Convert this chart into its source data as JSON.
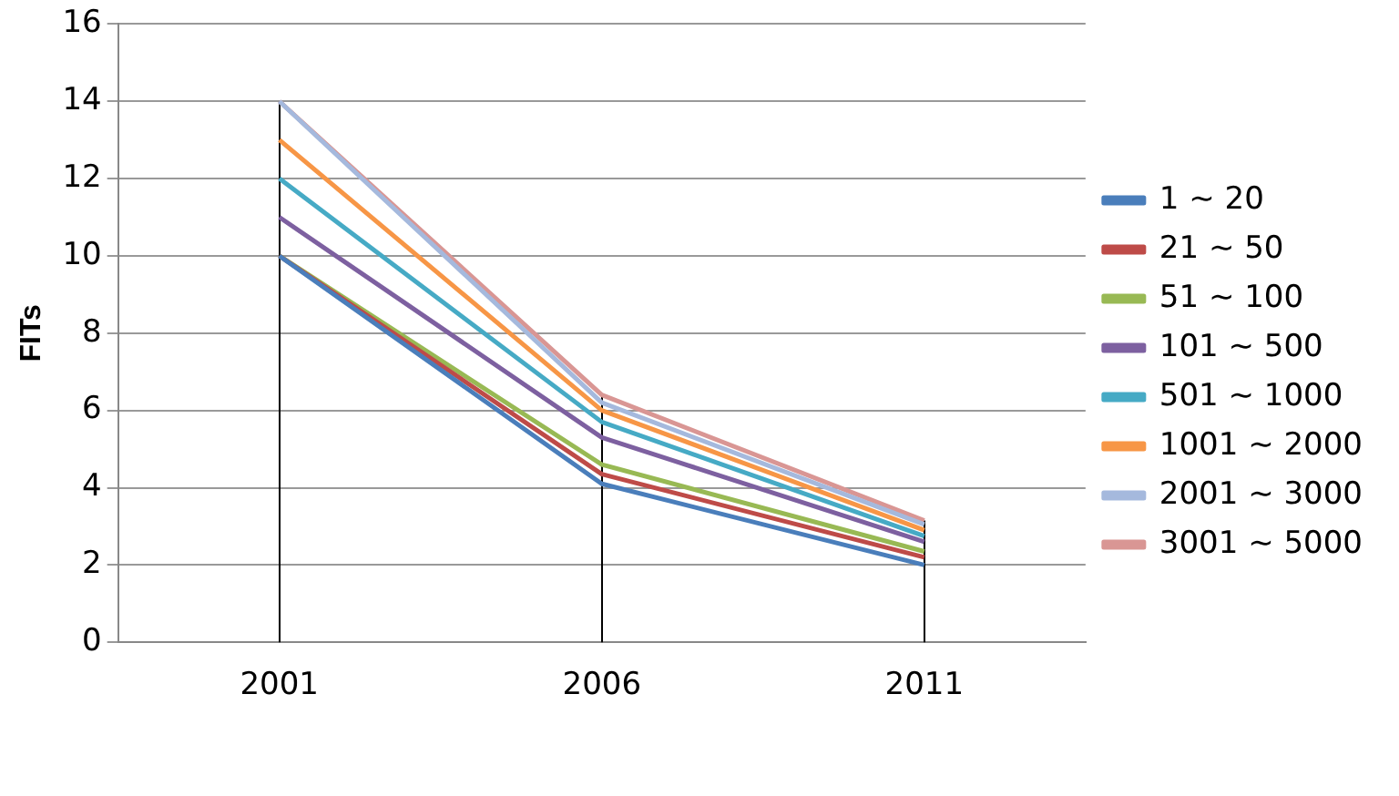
{
  "chart_data": {
    "type": "line",
    "ylabel": "FITs",
    "categories": [
      "2001",
      "2006",
      "2011"
    ],
    "ylim": [
      0,
      16
    ],
    "yticks": [
      0,
      2,
      4,
      6,
      8,
      10,
      12,
      14,
      16
    ],
    "grid": "y",
    "legend": "right",
    "marker": "none",
    "ref_lines": [
      {
        "axis": "x",
        "value": "2001",
        "color": "#000000"
      },
      {
        "axis": "x",
        "value": "2006",
        "color": "#000000"
      },
      {
        "axis": "x",
        "value": "2011",
        "color": "#000000"
      }
    ],
    "series": [
      {
        "name": "1 ~ 20",
        "color": "#4a7ebb",
        "values": [
          10,
          4.1,
          2.0
        ]
      },
      {
        "name": "21 ~ 50",
        "color": "#be4b48",
        "values": [
          10,
          4.35,
          2.2
        ]
      },
      {
        "name": "51 ~ 100",
        "color": "#98b954",
        "values": [
          10,
          4.6,
          2.35
        ]
      },
      {
        "name": "101 ~ 500",
        "color": "#7d60a0",
        "values": [
          11,
          5.3,
          2.6
        ]
      },
      {
        "name": "501 ~ 1000",
        "color": "#46aac5",
        "values": [
          12,
          5.7,
          2.75
        ]
      },
      {
        "name": "1001 ~ 2000",
        "color": "#f79646",
        "values": [
          13,
          6.0,
          2.9
        ]
      },
      {
        "name": "2001 ~ 3000",
        "color": "#a5b9dd",
        "values": [
          14,
          6.2,
          3.05
        ]
      },
      {
        "name": "3001 ~ 5000",
        "color": "#d99694",
        "values": [
          14,
          6.4,
          3.15
        ]
      }
    ]
  }
}
